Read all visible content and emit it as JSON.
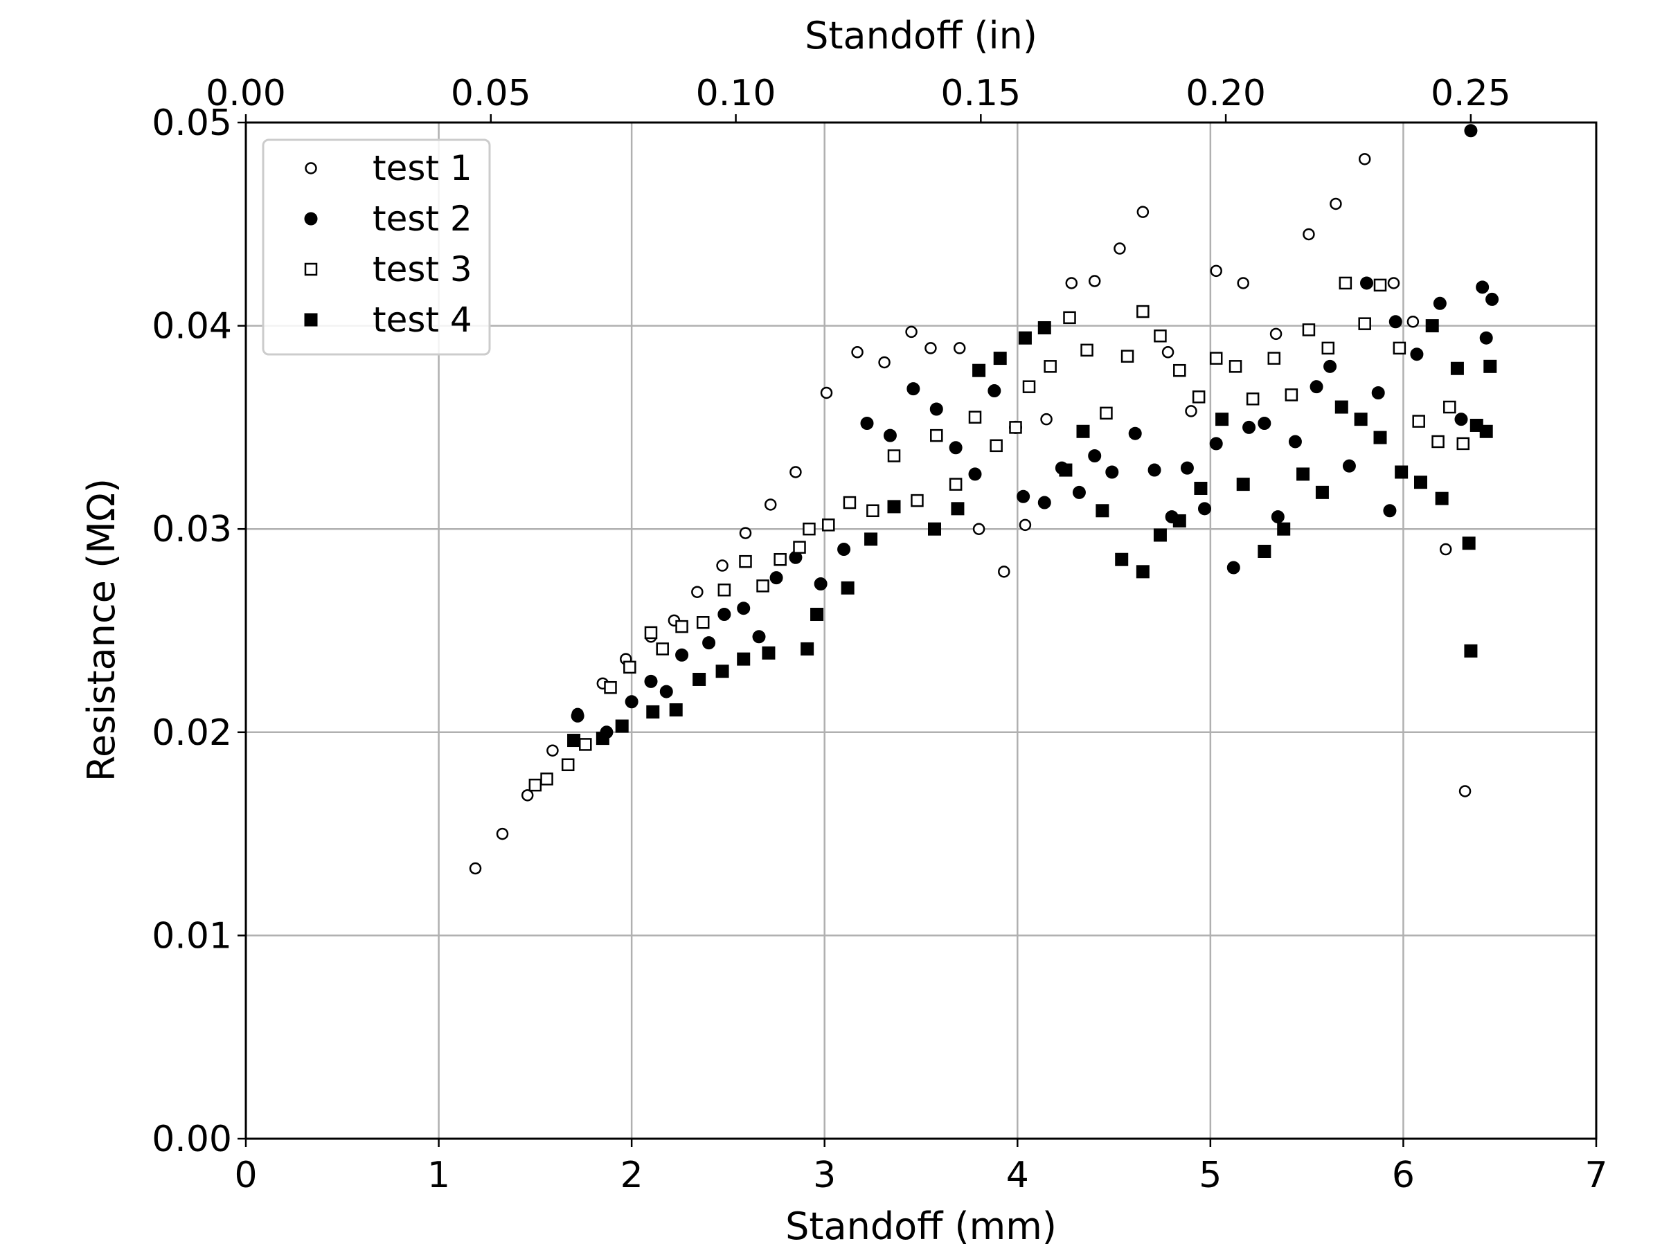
{
  "chart_data": {
    "type": "scatter",
    "xlabel": "Standoff (mm)",
    "x2label": "Standoff (in)",
    "ylabel": "Resistance (MΩ)",
    "xlim": [
      0,
      7
    ],
    "ylim": [
      0,
      0.05
    ],
    "x2lim": [
      0,
      0.2756
    ],
    "xticks": [
      "0",
      "1",
      "2",
      "3",
      "4",
      "5",
      "6",
      "7"
    ],
    "x2ticks": [
      "0.00",
      "0.05",
      "0.10",
      "0.15",
      "0.20",
      "0.25"
    ],
    "yticks": [
      "0.00",
      "0.01",
      "0.02",
      "0.03",
      "0.04",
      "0.05"
    ],
    "grid": true,
    "legend_position": "top-left",
    "series": [
      {
        "name": "test 1",
        "marker": "open-circle",
        "points": [
          [
            1.19,
            0.0133
          ],
          [
            1.33,
            0.015
          ],
          [
            1.46,
            0.0169
          ],
          [
            1.59,
            0.0191
          ],
          [
            1.72,
            0.0209
          ],
          [
            1.85,
            0.0224
          ],
          [
            1.97,
            0.0236
          ],
          [
            2.1,
            0.0247
          ],
          [
            2.22,
            0.0255
          ],
          [
            2.34,
            0.0269
          ],
          [
            2.47,
            0.0282
          ],
          [
            2.59,
            0.0298
          ],
          [
            2.72,
            0.0312
          ],
          [
            2.85,
            0.0328
          ],
          [
            3.01,
            0.0367
          ],
          [
            3.17,
            0.0387
          ],
          [
            3.31,
            0.0382
          ],
          [
            3.45,
            0.0397
          ],
          [
            3.55,
            0.0389
          ],
          [
            3.7,
            0.0389
          ],
          [
            3.8,
            0.03
          ],
          [
            3.93,
            0.0279
          ],
          [
            4.04,
            0.0302
          ],
          [
            4.15,
            0.0354
          ],
          [
            4.28,
            0.0421
          ],
          [
            4.4,
            0.0422
          ],
          [
            4.53,
            0.0438
          ],
          [
            4.65,
            0.0456
          ],
          [
            4.78,
            0.0387
          ],
          [
            4.9,
            0.0358
          ],
          [
            5.03,
            0.0427
          ],
          [
            5.17,
            0.0421
          ],
          [
            5.34,
            0.0396
          ],
          [
            5.51,
            0.0445
          ],
          [
            5.65,
            0.046
          ],
          [
            5.8,
            0.0482
          ],
          [
            5.95,
            0.0421
          ],
          [
            6.05,
            0.0402
          ],
          [
            6.22,
            0.029
          ],
          [
            6.32,
            0.0171
          ]
        ]
      },
      {
        "name": "test 2",
        "marker": "filled-circle",
        "points": [
          [
            1.72,
            0.0208
          ],
          [
            1.87,
            0.02
          ],
          [
            2.0,
            0.0215
          ],
          [
            2.1,
            0.0225
          ],
          [
            2.18,
            0.022
          ],
          [
            2.26,
            0.0238
          ],
          [
            2.4,
            0.0244
          ],
          [
            2.48,
            0.0258
          ],
          [
            2.58,
            0.0261
          ],
          [
            2.66,
            0.0247
          ],
          [
            2.75,
            0.0276
          ],
          [
            2.85,
            0.0286
          ],
          [
            2.98,
            0.0273
          ],
          [
            3.1,
            0.029
          ],
          [
            3.22,
            0.0352
          ],
          [
            3.34,
            0.0346
          ],
          [
            3.46,
            0.0369
          ],
          [
            3.58,
            0.0359
          ],
          [
            3.68,
            0.034
          ],
          [
            3.78,
            0.0327
          ],
          [
            3.88,
            0.0368
          ],
          [
            3.99,
            0.035
          ],
          [
            4.03,
            0.0316
          ],
          [
            4.14,
            0.0313
          ],
          [
            4.23,
            0.033
          ],
          [
            4.32,
            0.0318
          ],
          [
            4.4,
            0.0336
          ],
          [
            4.49,
            0.0328
          ],
          [
            4.61,
            0.0347
          ],
          [
            4.71,
            0.0329
          ],
          [
            4.8,
            0.0306
          ],
          [
            4.88,
            0.033
          ],
          [
            4.97,
            0.031
          ],
          [
            5.03,
            0.0342
          ],
          [
            5.12,
            0.0281
          ],
          [
            5.2,
            0.035
          ],
          [
            5.28,
            0.0352
          ],
          [
            5.35,
            0.0306
          ],
          [
            5.44,
            0.0343
          ],
          [
            5.55,
            0.037
          ],
          [
            5.62,
            0.038
          ],
          [
            5.72,
            0.0331
          ],
          [
            5.81,
            0.0421
          ],
          [
            5.87,
            0.0367
          ],
          [
            5.93,
            0.0309
          ],
          [
            5.96,
            0.0402
          ],
          [
            6.07,
            0.0386
          ],
          [
            6.19,
            0.0411
          ],
          [
            6.3,
            0.0354
          ],
          [
            6.35,
            0.0496
          ],
          [
            6.41,
            0.0419
          ],
          [
            6.43,
            0.0394
          ],
          [
            6.46,
            0.0413
          ]
        ]
      },
      {
        "name": "test 3",
        "marker": "open-square",
        "points": [
          [
            1.5,
            0.0174
          ],
          [
            1.56,
            0.0177
          ],
          [
            1.67,
            0.0184
          ],
          [
            1.76,
            0.0194
          ],
          [
            1.89,
            0.0222
          ],
          [
            1.99,
            0.0232
          ],
          [
            2.1,
            0.0249
          ],
          [
            2.16,
            0.0241
          ],
          [
            2.26,
            0.0252
          ],
          [
            2.37,
            0.0254
          ],
          [
            2.48,
            0.027
          ],
          [
            2.59,
            0.0284
          ],
          [
            2.68,
            0.0272
          ],
          [
            2.77,
            0.0285
          ],
          [
            2.87,
            0.0291
          ],
          [
            2.92,
            0.03
          ],
          [
            3.02,
            0.0302
          ],
          [
            3.13,
            0.0313
          ],
          [
            3.25,
            0.0309
          ],
          [
            3.36,
            0.0336
          ],
          [
            3.48,
            0.0314
          ],
          [
            3.58,
            0.0346
          ],
          [
            3.68,
            0.0322
          ],
          [
            3.78,
            0.0355
          ],
          [
            3.89,
            0.0341
          ],
          [
            3.99,
            0.035
          ],
          [
            4.06,
            0.037
          ],
          [
            4.17,
            0.038
          ],
          [
            4.27,
            0.0404
          ],
          [
            4.36,
            0.0388
          ],
          [
            4.46,
            0.0357
          ],
          [
            4.57,
            0.0385
          ],
          [
            4.65,
            0.0407
          ],
          [
            4.74,
            0.0395
          ],
          [
            4.84,
            0.0378
          ],
          [
            4.94,
            0.0365
          ],
          [
            5.03,
            0.0384
          ],
          [
            5.13,
            0.038
          ],
          [
            5.22,
            0.0364
          ],
          [
            5.33,
            0.0384
          ],
          [
            5.42,
            0.0366
          ],
          [
            5.51,
            0.0398
          ],
          [
            5.61,
            0.0389
          ],
          [
            5.7,
            0.0421
          ],
          [
            5.8,
            0.0401
          ],
          [
            5.88,
            0.042
          ],
          [
            5.98,
            0.0389
          ],
          [
            6.08,
            0.0353
          ],
          [
            6.18,
            0.0343
          ],
          [
            6.24,
            0.036
          ],
          [
            6.31,
            0.0342
          ]
        ]
      },
      {
        "name": "test 4",
        "marker": "filled-square",
        "points": [
          [
            1.7,
            0.0196
          ],
          [
            1.85,
            0.0197
          ],
          [
            1.95,
            0.0203
          ],
          [
            2.11,
            0.021
          ],
          [
            2.23,
            0.0211
          ],
          [
            2.35,
            0.0226
          ],
          [
            2.47,
            0.023
          ],
          [
            2.58,
            0.0236
          ],
          [
            2.71,
            0.0239
          ],
          [
            2.91,
            0.0241
          ],
          [
            2.96,
            0.0258
          ],
          [
            3.12,
            0.0271
          ],
          [
            3.24,
            0.0295
          ],
          [
            3.36,
            0.0311
          ],
          [
            3.57,
            0.03
          ],
          [
            3.69,
            0.031
          ],
          [
            3.8,
            0.0378
          ],
          [
            3.91,
            0.0384
          ],
          [
            4.04,
            0.0394
          ],
          [
            4.14,
            0.0399
          ],
          [
            4.25,
            0.0329
          ],
          [
            4.34,
            0.0348
          ],
          [
            4.44,
            0.0309
          ],
          [
            4.54,
            0.0285
          ],
          [
            4.65,
            0.0279
          ],
          [
            4.74,
            0.0297
          ],
          [
            4.84,
            0.0304
          ],
          [
            4.95,
            0.032
          ],
          [
            5.06,
            0.0354
          ],
          [
            5.17,
            0.0322
          ],
          [
            5.28,
            0.0289
          ],
          [
            5.38,
            0.03
          ],
          [
            5.48,
            0.0327
          ],
          [
            5.58,
            0.0318
          ],
          [
            5.68,
            0.036
          ],
          [
            5.78,
            0.0354
          ],
          [
            5.88,
            0.0345
          ],
          [
            5.99,
            0.0328
          ],
          [
            6.09,
            0.0323
          ],
          [
            6.15,
            0.04
          ],
          [
            6.2,
            0.0315
          ],
          [
            6.28,
            0.0379
          ],
          [
            6.34,
            0.0293
          ],
          [
            6.35,
            0.024
          ],
          [
            6.38,
            0.0351
          ],
          [
            6.43,
            0.0348
          ],
          [
            6.45,
            0.038
          ]
        ]
      }
    ]
  }
}
